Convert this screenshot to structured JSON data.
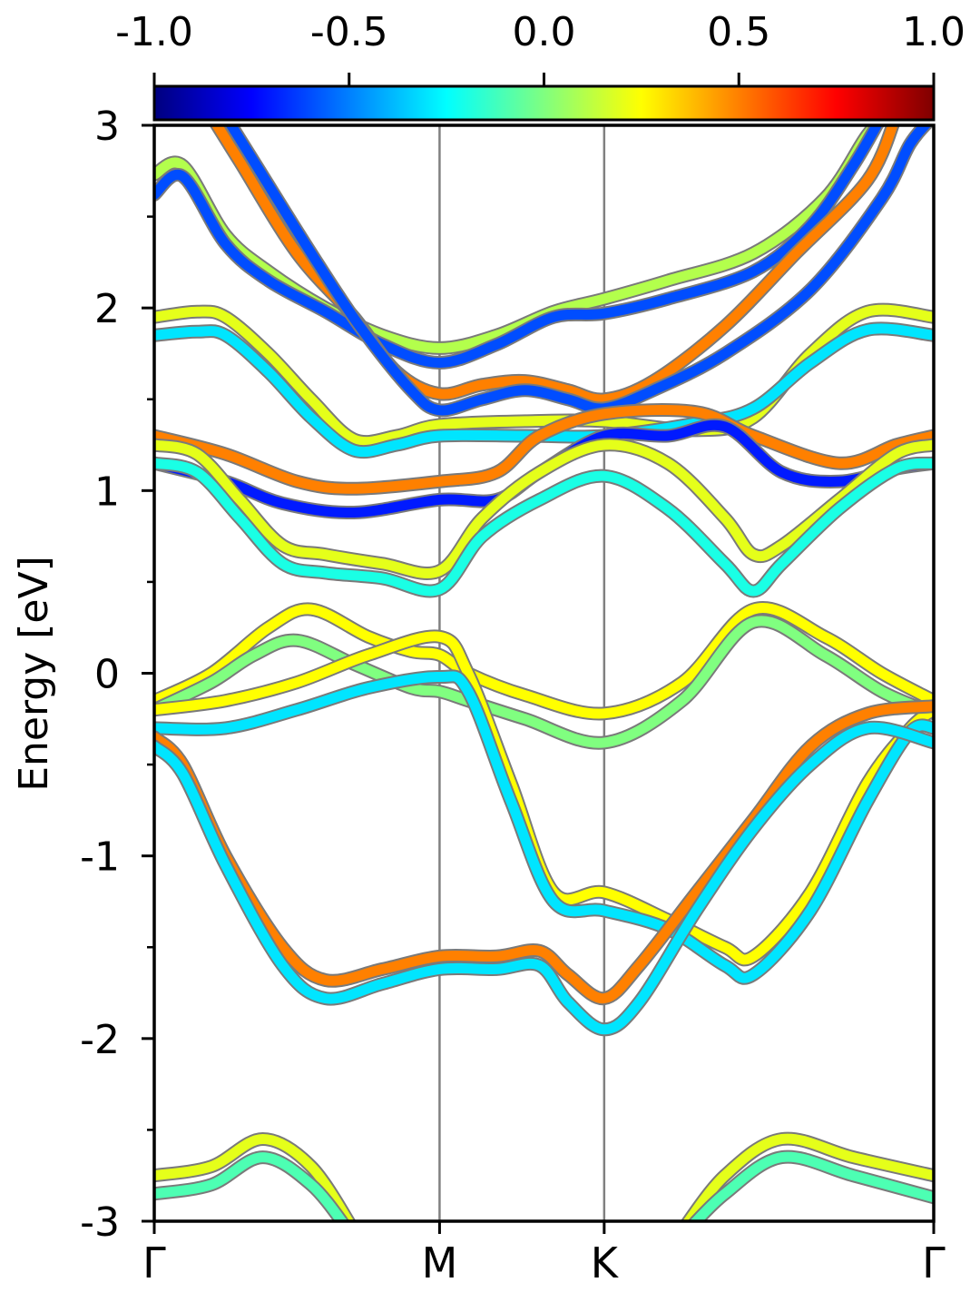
{
  "chart_data": {
    "type": "line",
    "ylabel": "Energy [eV]",
    "ylim": [
      -3,
      3
    ],
    "yticks": [
      "3",
      "2",
      "1",
      "0",
      "-1",
      "-2",
      "-3"
    ],
    "xticks": [
      {
        "label": "Γ",
        "k": 0.0
      },
      {
        "label": "M",
        "k": 1.0
      },
      {
        "label": "K",
        "k": 1.577
      },
      {
        "label": "Γ",
        "k": 2.732
      }
    ],
    "xlim": [
      0.0,
      2.732
    ],
    "colorbar": {
      "range": [
        -1.0,
        1.0
      ],
      "ticks": [
        "-1.0",
        "-0.5",
        "0.0",
        "0.5",
        "1.0"
      ],
      "colormap": "jet"
    },
    "series": [
      {
        "color_value": 0.1,
        "points": [
          [
            0.0,
            2.73
          ],
          [
            0.1,
            2.78
          ],
          [
            0.25,
            2.4
          ],
          [
            0.4,
            2.2
          ],
          [
            0.6,
            2.0
          ],
          [
            0.8,
            1.85
          ],
          [
            1.0,
            1.78
          ],
          [
            1.2,
            1.85
          ],
          [
            1.4,
            1.98
          ],
          [
            1.577,
            2.05
          ],
          [
            1.8,
            2.15
          ],
          [
            2.1,
            2.3
          ],
          [
            2.35,
            2.6
          ],
          [
            2.5,
            2.95
          ],
          [
            2.57,
            3.05
          ]
        ]
      },
      {
        "color_value": -0.6,
        "points": [
          [
            0.0,
            2.62
          ],
          [
            0.1,
            2.72
          ],
          [
            0.25,
            2.35
          ],
          [
            0.4,
            2.15
          ],
          [
            0.6,
            1.98
          ],
          [
            0.8,
            1.8
          ],
          [
            1.0,
            1.7
          ],
          [
            1.2,
            1.8
          ],
          [
            1.4,
            1.95
          ],
          [
            1.577,
            1.97
          ],
          [
            1.8,
            2.05
          ],
          [
            2.1,
            2.2
          ],
          [
            2.3,
            2.45
          ],
          [
            2.45,
            2.78
          ],
          [
            2.55,
            3.05
          ]
        ]
      },
      {
        "color_value": 0.5,
        "points": [
          [
            0.2,
            3.05
          ],
          [
            0.3,
            2.8
          ],
          [
            0.5,
            2.3
          ],
          [
            0.7,
            1.95
          ],
          [
            0.85,
            1.65
          ],
          [
            1.0,
            1.53
          ],
          [
            1.15,
            1.58
          ],
          [
            1.3,
            1.6
          ],
          [
            1.45,
            1.55
          ],
          [
            1.577,
            1.5
          ],
          [
            1.75,
            1.6
          ],
          [
            2.0,
            1.9
          ],
          [
            2.25,
            2.3
          ],
          [
            2.5,
            2.7
          ],
          [
            2.6,
            3.05
          ]
        ]
      },
      {
        "color_value": -0.6,
        "points": [
          [
            0.25,
            3.05
          ],
          [
            0.35,
            2.8
          ],
          [
            0.55,
            2.3
          ],
          [
            0.72,
            1.9
          ],
          [
            0.9,
            1.55
          ],
          [
            1.0,
            1.44
          ],
          [
            1.15,
            1.5
          ],
          [
            1.3,
            1.55
          ],
          [
            1.45,
            1.5
          ],
          [
            1.577,
            1.45
          ],
          [
            1.75,
            1.55
          ],
          [
            2.0,
            1.75
          ],
          [
            2.3,
            2.1
          ],
          [
            2.55,
            2.6
          ],
          [
            2.65,
            2.9
          ],
          [
            2.732,
            3.05
          ]
        ]
      },
      {
        "color_value": 0.2,
        "points": [
          [
            0.0,
            1.95
          ],
          [
            0.15,
            1.98
          ],
          [
            0.25,
            1.95
          ],
          [
            0.4,
            1.75
          ],
          [
            0.55,
            1.5
          ],
          [
            0.7,
            1.28
          ],
          [
            0.85,
            1.3
          ],
          [
            1.0,
            1.36
          ],
          [
            1.3,
            1.38
          ],
          [
            1.577,
            1.38
          ],
          [
            1.9,
            1.33
          ],
          [
            2.1,
            1.4
          ],
          [
            2.3,
            1.75
          ],
          [
            2.5,
            1.98
          ],
          [
            2.732,
            1.95
          ]
        ]
      },
      {
        "color_value": -0.3,
        "points": [
          [
            0.0,
            1.85
          ],
          [
            0.15,
            1.87
          ],
          [
            0.25,
            1.85
          ],
          [
            0.4,
            1.65
          ],
          [
            0.55,
            1.4
          ],
          [
            0.7,
            1.22
          ],
          [
            0.85,
            1.25
          ],
          [
            1.0,
            1.3
          ],
          [
            1.3,
            1.3
          ],
          [
            1.577,
            1.3
          ],
          [
            1.9,
            1.37
          ],
          [
            2.1,
            1.45
          ],
          [
            2.3,
            1.7
          ],
          [
            2.5,
            1.88
          ],
          [
            2.732,
            1.85
          ]
        ]
      },
      {
        "color_value": 0.5,
        "points": [
          [
            0.0,
            1.3
          ],
          [
            0.25,
            1.2
          ],
          [
            0.5,
            1.05
          ],
          [
            0.7,
            1.01
          ],
          [
            1.0,
            1.05
          ],
          [
            1.2,
            1.1
          ],
          [
            1.35,
            1.3
          ],
          [
            1.577,
            1.42
          ],
          [
            1.9,
            1.43
          ],
          [
            2.1,
            1.3
          ],
          [
            2.4,
            1.15
          ],
          [
            2.6,
            1.25
          ],
          [
            2.732,
            1.3
          ]
        ]
      },
      {
        "color_value": -0.7,
        "points": [
          [
            0.0,
            1.15
          ],
          [
            0.25,
            1.05
          ],
          [
            0.45,
            0.93
          ],
          [
            0.7,
            0.88
          ],
          [
            1.0,
            0.95
          ],
          [
            1.2,
            0.95
          ],
          [
            1.35,
            1.1
          ],
          [
            1.577,
            1.3
          ],
          [
            1.8,
            1.3
          ],
          [
            2.0,
            1.35
          ],
          [
            2.2,
            1.1
          ],
          [
            2.4,
            1.05
          ],
          [
            2.6,
            1.12
          ],
          [
            2.732,
            1.15
          ]
        ]
      },
      {
        "color_value": 0.2,
        "points": [
          [
            0.0,
            1.25
          ],
          [
            0.15,
            1.2
          ],
          [
            0.3,
            0.95
          ],
          [
            0.45,
            0.7
          ],
          [
            0.6,
            0.65
          ],
          [
            0.8,
            0.6
          ],
          [
            1.0,
            0.56
          ],
          [
            1.15,
            0.85
          ],
          [
            1.35,
            1.1
          ],
          [
            1.577,
            1.25
          ],
          [
            1.8,
            1.15
          ],
          [
            2.0,
            0.85
          ],
          [
            2.1,
            0.65
          ],
          [
            2.2,
            0.7
          ],
          [
            2.4,
            0.95
          ],
          [
            2.6,
            1.2
          ],
          [
            2.732,
            1.25
          ]
        ]
      },
      {
        "color_value": -0.2,
        "points": [
          [
            0.0,
            1.15
          ],
          [
            0.15,
            1.1
          ],
          [
            0.3,
            0.85
          ],
          [
            0.45,
            0.6
          ],
          [
            0.6,
            0.55
          ],
          [
            0.8,
            0.52
          ],
          [
            1.0,
            0.46
          ],
          [
            1.15,
            0.75
          ],
          [
            1.35,
            0.95
          ],
          [
            1.577,
            1.08
          ],
          [
            1.8,
            0.9
          ],
          [
            2.0,
            0.6
          ],
          [
            2.1,
            0.45
          ],
          [
            2.2,
            0.6
          ],
          [
            2.4,
            0.9
          ],
          [
            2.6,
            1.12
          ],
          [
            2.732,
            1.15
          ]
        ]
      },
      {
        "color_value": 0.25,
        "points": [
          [
            0.0,
            -0.15
          ],
          [
            0.2,
            0.0
          ],
          [
            0.4,
            0.25
          ],
          [
            0.55,
            0.35
          ],
          [
            0.75,
            0.2
          ],
          [
            0.9,
            0.12
          ],
          [
            1.0,
            0.1
          ],
          [
            1.1,
            0.0
          ],
          [
            1.3,
            -0.12
          ],
          [
            1.577,
            -0.22
          ],
          [
            1.85,
            -0.05
          ],
          [
            2.1,
            0.35
          ],
          [
            2.35,
            0.2
          ],
          [
            2.55,
            0.0
          ],
          [
            2.732,
            -0.15
          ]
        ]
      },
      {
        "color_value": 0.0,
        "points": [
          [
            0.0,
            -0.2
          ],
          [
            0.2,
            -0.05
          ],
          [
            0.35,
            0.1
          ],
          [
            0.5,
            0.18
          ],
          [
            0.7,
            0.05
          ],
          [
            0.9,
            -0.08
          ],
          [
            1.0,
            -0.1
          ],
          [
            1.1,
            -0.15
          ],
          [
            1.3,
            -0.25
          ],
          [
            1.577,
            -0.38
          ],
          [
            1.85,
            -0.15
          ],
          [
            2.1,
            0.28
          ],
          [
            2.35,
            0.1
          ],
          [
            2.55,
            -0.1
          ],
          [
            2.732,
            -0.22
          ]
        ]
      },
      {
        "color_value": 0.25,
        "points": [
          [
            0.0,
            -0.2
          ],
          [
            0.25,
            -0.15
          ],
          [
            0.5,
            -0.05
          ],
          [
            0.75,
            0.1
          ],
          [
            1.0,
            0.2
          ],
          [
            1.1,
            0.0
          ],
          [
            1.25,
            -0.6
          ],
          [
            1.4,
            -1.2
          ],
          [
            1.577,
            -1.2
          ],
          [
            1.8,
            -1.35
          ],
          [
            2.0,
            -1.5
          ],
          [
            2.1,
            -1.55
          ],
          [
            2.3,
            -1.2
          ],
          [
            2.5,
            -0.6
          ],
          [
            2.65,
            -0.3
          ],
          [
            2.732,
            -0.2
          ]
        ]
      },
      {
        "color_value": -0.3,
        "points": [
          [
            0.0,
            -0.3
          ],
          [
            0.25,
            -0.3
          ],
          [
            0.5,
            -0.2
          ],
          [
            0.75,
            -0.08
          ],
          [
            1.0,
            -0.02
          ],
          [
            1.1,
            -0.1
          ],
          [
            1.25,
            -0.7
          ],
          [
            1.4,
            -1.25
          ],
          [
            1.577,
            -1.3
          ],
          [
            1.8,
            -1.4
          ],
          [
            2.0,
            -1.6
          ],
          [
            2.1,
            -1.65
          ],
          [
            2.3,
            -1.3
          ],
          [
            2.5,
            -0.7
          ],
          [
            2.65,
            -0.32
          ],
          [
            2.732,
            -0.3
          ]
        ]
      },
      {
        "color_value": 0.5,
        "points": [
          [
            0.0,
            -0.35
          ],
          [
            0.1,
            -0.5
          ],
          [
            0.25,
            -1.0
          ],
          [
            0.45,
            -1.5
          ],
          [
            0.6,
            -1.68
          ],
          [
            0.8,
            -1.62
          ],
          [
            1.0,
            -1.55
          ],
          [
            1.2,
            -1.55
          ],
          [
            1.35,
            -1.52
          ],
          [
            1.45,
            -1.65
          ],
          [
            1.577,
            -1.78
          ],
          [
            1.7,
            -1.6
          ],
          [
            1.9,
            -1.2
          ],
          [
            2.1,
            -0.8
          ],
          [
            2.3,
            -0.4
          ],
          [
            2.5,
            -0.22
          ],
          [
            2.732,
            -0.18
          ]
        ]
      },
      {
        "color_value": -0.3,
        "points": [
          [
            0.0,
            -0.4
          ],
          [
            0.1,
            -0.55
          ],
          [
            0.25,
            -1.05
          ],
          [
            0.45,
            -1.6
          ],
          [
            0.6,
            -1.78
          ],
          [
            0.8,
            -1.7
          ],
          [
            1.0,
            -1.62
          ],
          [
            1.2,
            -1.62
          ],
          [
            1.35,
            -1.6
          ],
          [
            1.45,
            -1.8
          ],
          [
            1.577,
            -1.95
          ],
          [
            1.7,
            -1.8
          ],
          [
            1.9,
            -1.3
          ],
          [
            2.1,
            -0.85
          ],
          [
            2.3,
            -0.5
          ],
          [
            2.5,
            -0.3
          ],
          [
            2.732,
            -0.38
          ]
        ]
      },
      {
        "color_value": 0.2,
        "points": [
          [
            0.0,
            -2.75
          ],
          [
            0.2,
            -2.7
          ],
          [
            0.38,
            -2.55
          ],
          [
            0.55,
            -2.7
          ],
          [
            0.7,
            -3.05
          ]
        ]
      },
      {
        "color_value": -0.1,
        "points": [
          [
            0.0,
            -2.85
          ],
          [
            0.2,
            -2.8
          ],
          [
            0.38,
            -2.65
          ],
          [
            0.55,
            -2.8
          ],
          [
            0.68,
            -3.05
          ]
        ]
      },
      {
        "color_value": 0.2,
        "points": [
          [
            1.85,
            -3.05
          ],
          [
            2.0,
            -2.75
          ],
          [
            2.2,
            -2.55
          ],
          [
            2.45,
            -2.65
          ],
          [
            2.732,
            -2.75
          ]
        ]
      },
      {
        "color_value": -0.1,
        "points": [
          [
            1.87,
            -3.05
          ],
          [
            2.0,
            -2.85
          ],
          [
            2.2,
            -2.65
          ],
          [
            2.45,
            -2.75
          ],
          [
            2.732,
            -2.87
          ]
        ]
      }
    ]
  }
}
